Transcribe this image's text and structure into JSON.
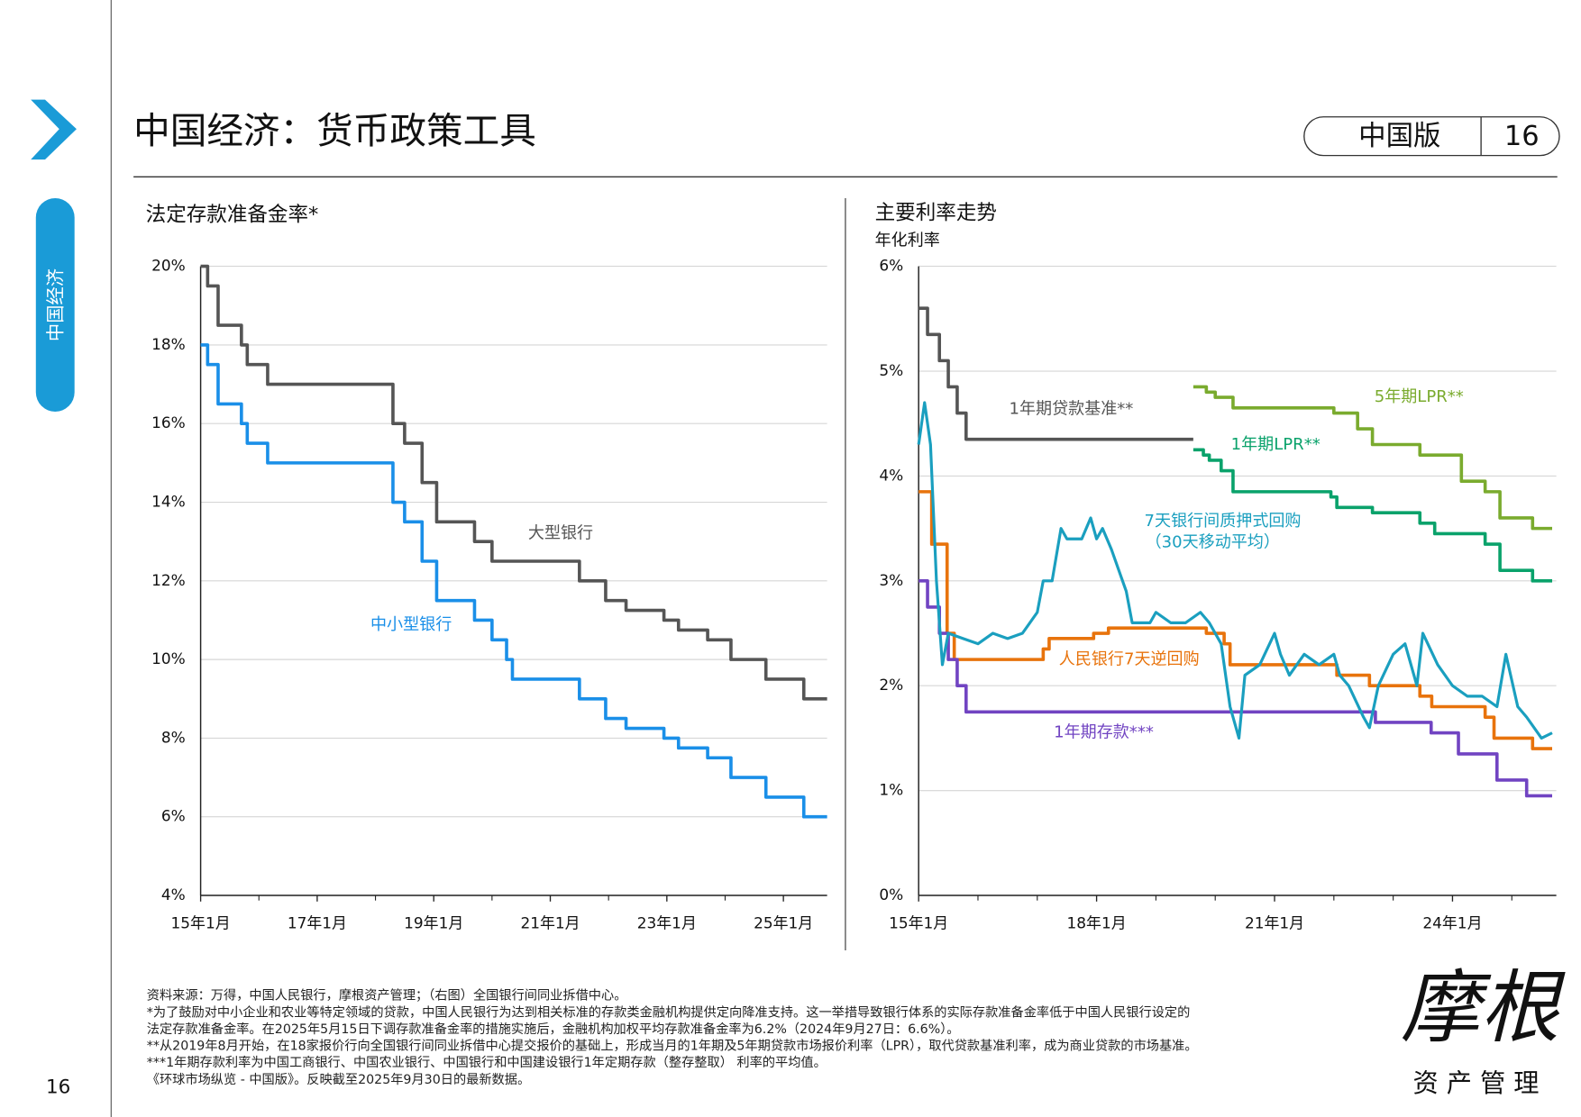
{
  "header": {
    "title": "中国经济：货币政策工具",
    "edition": "中国版",
    "page": "16"
  },
  "sidebar": {
    "section": "中国经济",
    "page_number": "16"
  },
  "chart_data": [
    {
      "type": "line",
      "title": "法定存款准备金率*",
      "xlim": [
        2015,
        2025.75
      ],
      "xticks": [
        {
          "value": 2015,
          "label": "15年1月"
        },
        {
          "value": 2017,
          "label": "17年1月"
        },
        {
          "value": 2019,
          "label": "19年1月"
        },
        {
          "value": 2021,
          "label": "21年1月"
        },
        {
          "value": 2023,
          "label": "23年1月"
        },
        {
          "value": 2025,
          "label": "25年1月"
        }
      ],
      "xminorticks": [
        2016,
        2018,
        2020,
        2022,
        2024
      ],
      "ylim": [
        4,
        20
      ],
      "yticks": [
        {
          "value": 4,
          "label": "4%"
        },
        {
          "value": 6,
          "label": "6%"
        },
        {
          "value": 8,
          "label": "8%"
        },
        {
          "value": 10,
          "label": "10%"
        },
        {
          "value": 12,
          "label": "12%"
        },
        {
          "value": 14,
          "label": "14%"
        },
        {
          "value": 16,
          "label": "16%"
        },
        {
          "value": 18,
          "label": "18%"
        },
        {
          "value": 20,
          "label": "20%"
        }
      ],
      "grid": true,
      "series": [
        {
          "name": "大型银行",
          "color": "#555555",
          "step": true,
          "x": [
            2015.0,
            2015.12,
            2015.3,
            2015.7,
            2015.8,
            2016.15,
            2018.3,
            2018.5,
            2018.8,
            2019.05,
            2019.7,
            2020.0,
            2021.5,
            2021.95,
            2022.3,
            2022.95,
            2023.2,
            2023.7,
            2024.1,
            2024.7,
            2025.35,
            2025.75
          ],
          "values": [
            20,
            19.5,
            18.5,
            18,
            17.5,
            17,
            16,
            15.5,
            14.5,
            13.5,
            13,
            12.5,
            12,
            11.5,
            11.25,
            11,
            10.75,
            10.5,
            10,
            9.5,
            9,
            9
          ]
        },
        {
          "name": "中小型银行",
          "color": "#1a8fe8",
          "step": true,
          "x": [
            2015.0,
            2015.12,
            2015.3,
            2015.7,
            2015.8,
            2016.15,
            2018.3,
            2018.5,
            2018.8,
            2019.05,
            2019.7,
            2020.0,
            2020.25,
            2020.35,
            2021.5,
            2021.95,
            2022.3,
            2022.95,
            2023.2,
            2023.7,
            2024.1,
            2024.7,
            2025.35,
            2025.75
          ],
          "values": [
            18,
            17.5,
            16.5,
            16,
            15.5,
            15,
            14,
            13.5,
            12.5,
            11.5,
            11,
            10.5,
            10,
            9.5,
            9,
            8.5,
            8.25,
            8,
            7.75,
            7.5,
            7,
            6.5,
            6,
            6
          ]
        }
      ]
    },
    {
      "type": "line",
      "title": "主要利率走势",
      "subtitle": "年化利率",
      "xlim": [
        2015,
        2025.75
      ],
      "xticks": [
        {
          "value": 2015,
          "label": "15年1月"
        },
        {
          "value": 2018,
          "label": "18年1月"
        },
        {
          "value": 2021,
          "label": "21年1月"
        },
        {
          "value": 2024,
          "label": "24年1月"
        }
      ],
      "xminorticks": [
        2016,
        2017,
        2019,
        2020,
        2022,
        2023,
        2025
      ],
      "ylim": [
        0,
        6
      ],
      "yticks": [
        {
          "value": 0,
          "label": "0%"
        },
        {
          "value": 1,
          "label": "1%"
        },
        {
          "value": 2,
          "label": "2%"
        },
        {
          "value": 3,
          "label": "3%"
        },
        {
          "value": 4,
          "label": "4%"
        },
        {
          "value": 5,
          "label": "5%"
        },
        {
          "value": 6,
          "label": "6%"
        }
      ],
      "grid": true,
      "series": [
        {
          "name": "1年期贷款基准**",
          "color": "#555555",
          "step": true,
          "x": [
            2015.0,
            2015.15,
            2015.35,
            2015.5,
            2015.65,
            2015.8,
            2019.63
          ],
          "values": [
            5.6,
            5.35,
            5.1,
            4.85,
            4.6,
            4.35,
            4.35
          ]
        },
        {
          "name": "5年期LPR**",
          "color": "#7aab2e",
          "step": true,
          "x": [
            2019.63,
            2019.85,
            2020.0,
            2020.3,
            2022.0,
            2022.4,
            2022.65,
            2023.45,
            2024.15,
            2024.55,
            2024.8,
            2025.35,
            2025.68
          ],
          "values": [
            4.85,
            4.8,
            4.75,
            4.65,
            4.6,
            4.45,
            4.3,
            4.2,
            3.95,
            3.85,
            3.6,
            3.5,
            3.5
          ]
        },
        {
          "name": "1年期LPR**",
          "color": "#0aa26b",
          "step": true,
          "x": [
            2019.63,
            2019.8,
            2019.9,
            2020.1,
            2020.3,
            2021.95,
            2022.05,
            2022.65,
            2023.45,
            2023.7,
            2024.55,
            2024.8,
            2025.35,
            2025.68
          ],
          "values": [
            4.25,
            4.2,
            4.15,
            4.05,
            3.85,
            3.8,
            3.7,
            3.65,
            3.55,
            3.45,
            3.35,
            3.1,
            3.0,
            3.0
          ]
        },
        {
          "name": "人民银行7天逆回购",
          "color": "#e8730c",
          "step": true,
          "x": [
            2015.0,
            2015.22,
            2015.48,
            2015.6,
            2017.1,
            2017.2,
            2017.95,
            2018.2,
            2019.85,
            2020.15,
            2020.25,
            2022.05,
            2022.6,
            2023.45,
            2023.65,
            2024.55,
            2024.7,
            2025.35,
            2025.68
          ],
          "values": [
            3.85,
            3.35,
            2.5,
            2.25,
            2.35,
            2.45,
            2.5,
            2.55,
            2.5,
            2.4,
            2.2,
            2.1,
            2.0,
            1.9,
            1.8,
            1.7,
            1.5,
            1.4,
            1.4
          ]
        },
        {
          "name": "1年期存款***",
          "color": "#7144c2",
          "step": true,
          "x": [
            2015.0,
            2015.15,
            2015.35,
            2015.5,
            2015.65,
            2015.8,
            2022.7,
            2023.64,
            2024.1,
            2024.75,
            2025.25,
            2025.68
          ],
          "values": [
            3.0,
            2.75,
            2.5,
            2.25,
            2.0,
            1.75,
            1.65,
            1.55,
            1.35,
            1.1,
            0.95,
            0.95
          ]
        },
        {
          "name": "7天银行间质押式回购",
          "note": "（30天移动平均）",
          "color": "#1a9fbf",
          "step": false,
          "x": [
            2015.0,
            2015.1,
            2015.2,
            2015.3,
            2015.4,
            2015.5,
            2015.75,
            2016.0,
            2016.25,
            2016.5,
            2016.75,
            2017.0,
            2017.1,
            2017.25,
            2017.4,
            2017.5,
            2017.75,
            2017.9,
            2018.0,
            2018.1,
            2018.25,
            2018.5,
            2018.6,
            2018.75,
            2018.9,
            2019.0,
            2019.25,
            2019.5,
            2019.75,
            2019.9,
            2020.1,
            2020.25,
            2020.4,
            2020.5,
            2020.75,
            2021.0,
            2021.1,
            2021.25,
            2021.5,
            2021.75,
            2022.0,
            2022.1,
            2022.25,
            2022.5,
            2022.6,
            2022.75,
            2023.0,
            2023.2,
            2023.4,
            2023.5,
            2023.75,
            2024.0,
            2024.25,
            2024.5,
            2024.75,
            2024.9,
            2025.1,
            2025.25,
            2025.5,
            2025.68
          ],
          "values": [
            4.3,
            4.7,
            4.3,
            3.0,
            2.2,
            2.5,
            2.45,
            2.4,
            2.5,
            2.45,
            2.5,
            2.7,
            3.0,
            3.0,
            3.5,
            3.4,
            3.4,
            3.6,
            3.4,
            3.5,
            3.3,
            2.9,
            2.6,
            2.6,
            2.6,
            2.7,
            2.6,
            2.6,
            2.7,
            2.6,
            2.4,
            1.8,
            1.5,
            2.1,
            2.2,
            2.5,
            2.3,
            2.1,
            2.3,
            2.2,
            2.3,
            2.1,
            2.0,
            1.7,
            1.6,
            2.0,
            2.3,
            2.4,
            2.0,
            2.5,
            2.2,
            2.0,
            1.9,
            1.9,
            1.8,
            2.3,
            1.8,
            1.7,
            1.5,
            1.55
          ]
        }
      ]
    }
  ],
  "footnotes": [
    "资料来源：万得，中国人民银行，摩根资产管理；（右图）全国银行间同业拆借中心。",
    "*为了鼓励对中小企业和农业等特定领域的贷款，中国人民银行为达到相关标准的存款类金融机构提供定向降准支持。这一举措导致银行体系的实际存款准备金率低于中国人民银行设定的",
    "法定存款准备金率。在2025年5月15日下调存款准备金率的措施实施后，金融机构加权平均存款准备金率为6.2%（2024年9月27日：6.6%）。",
    "**从2019年8月开始，在18家报价行向全国银行间同业拆借中心提交报价的基础上，形成当月的1年期及5年期贷款市场报价利率（LPR），取代贷款基准利率，成为商业贷款的市场基准。",
    "***1年期存款利率为中国工商银行、中国农业银行、中国银行和中国建设银行1年定期存款（整存整取） 利率的平均值。",
    "《环球市场纵览 - 中国版》。反映截至2025年9月30日的最新数据。"
  ],
  "logo": {
    "name": "摩根",
    "subtitle": "资产管理"
  }
}
